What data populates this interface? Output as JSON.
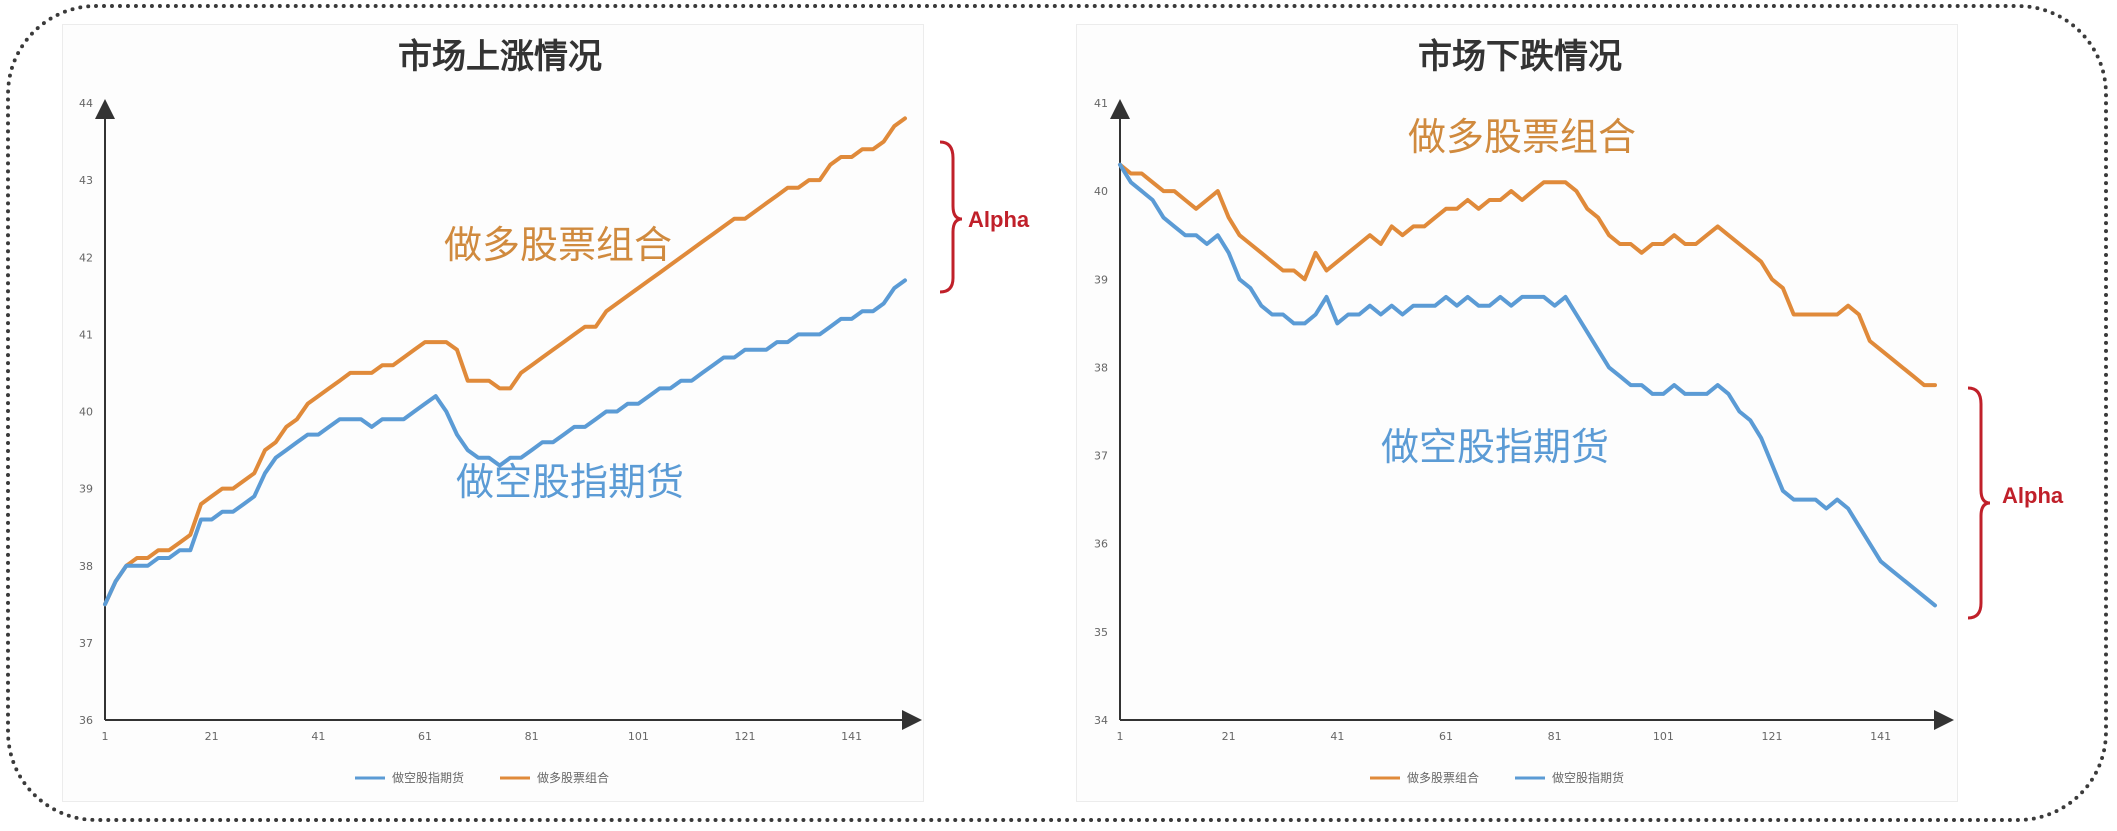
{
  "colors": {
    "long": "#e08a3a",
    "short": "#5b9bd5",
    "alpha": "#c0202a",
    "axis": "#333333"
  },
  "chart_data": [
    {
      "type": "line",
      "title": "市场上涨情况",
      "x_tick_labels": [
        "1",
        "21",
        "41",
        "61",
        "81",
        "101",
        "121",
        "141"
      ],
      "y_tick_labels": [
        "36",
        "37",
        "38",
        "39",
        "40",
        "41",
        "42",
        "43",
        "44"
      ],
      "xlim": [
        1,
        151
      ],
      "ylim": [
        36,
        44
      ],
      "legend": [
        "做空股指期货",
        "做多股票组合"
      ],
      "legend_position": "bottom",
      "annotations": {
        "long": "做多股票组合",
        "short": "做空股指期货",
        "alpha": "Alpha"
      },
      "series": [
        {
          "name": "做多股票组合",
          "color_key": "long",
          "x": [
            1,
            3,
            5,
            7,
            9,
            11,
            13,
            15,
            17,
            19,
            21,
            23,
            25,
            27,
            29,
            31,
            33,
            35,
            37,
            39,
            41,
            43,
            45,
            47,
            49,
            51,
            53,
            55,
            57,
            59,
            61,
            63,
            65,
            67,
            69,
            71,
            73,
            75,
            77,
            79,
            81,
            83,
            85,
            87,
            89,
            91,
            93,
            95,
            97,
            99,
            101,
            103,
            105,
            107,
            109,
            111,
            113,
            115,
            117,
            119,
            121,
            123,
            125,
            127,
            129,
            131,
            133,
            135,
            137,
            139,
            141,
            143,
            145,
            147,
            149,
            151
          ],
          "y": [
            37.5,
            37.8,
            38.0,
            38.1,
            38.1,
            38.2,
            38.2,
            38.3,
            38.4,
            38.8,
            38.9,
            39.0,
            39.0,
            39.1,
            39.2,
            39.5,
            39.6,
            39.8,
            39.9,
            40.1,
            40.2,
            40.3,
            40.4,
            40.5,
            40.5,
            40.5,
            40.6,
            40.6,
            40.7,
            40.8,
            40.9,
            40.9,
            40.9,
            40.8,
            40.4,
            40.4,
            40.4,
            40.3,
            40.3,
            40.5,
            40.6,
            40.7,
            40.8,
            40.9,
            41.0,
            41.1,
            41.1,
            41.3,
            41.4,
            41.5,
            41.6,
            41.7,
            41.8,
            41.9,
            42.0,
            42.1,
            42.2,
            42.3,
            42.4,
            42.5,
            42.5,
            42.6,
            42.7,
            42.8,
            42.9,
            42.9,
            43.0,
            43.0,
            43.2,
            43.3,
            43.3,
            43.4,
            43.4,
            43.5,
            43.7,
            43.8
          ]
        },
        {
          "name": "做空股指期货",
          "color_key": "short",
          "x": [
            1,
            3,
            5,
            7,
            9,
            11,
            13,
            15,
            17,
            19,
            21,
            23,
            25,
            27,
            29,
            31,
            33,
            35,
            37,
            39,
            41,
            43,
            45,
            47,
            49,
            51,
            53,
            55,
            57,
            59,
            61,
            63,
            65,
            67,
            69,
            71,
            73,
            75,
            77,
            79,
            81,
            83,
            85,
            87,
            89,
            91,
            93,
            95,
            97,
            99,
            101,
            103,
            105,
            107,
            109,
            111,
            113,
            115,
            117,
            119,
            121,
            123,
            125,
            127,
            129,
            131,
            133,
            135,
            137,
            139,
            141,
            143,
            145,
            147,
            149,
            151
          ],
          "y": [
            37.5,
            37.8,
            38.0,
            38.0,
            38.0,
            38.1,
            38.1,
            38.2,
            38.2,
            38.6,
            38.6,
            38.7,
            38.7,
            38.8,
            38.9,
            39.2,
            39.4,
            39.5,
            39.6,
            39.7,
            39.7,
            39.8,
            39.9,
            39.9,
            39.9,
            39.8,
            39.9,
            39.9,
            39.9,
            40.0,
            40.1,
            40.2,
            40.0,
            39.7,
            39.5,
            39.4,
            39.4,
            39.3,
            39.4,
            39.4,
            39.5,
            39.6,
            39.6,
            39.7,
            39.8,
            39.8,
            39.9,
            40.0,
            40.0,
            40.1,
            40.1,
            40.2,
            40.3,
            40.3,
            40.4,
            40.4,
            40.5,
            40.6,
            40.7,
            40.7,
            40.8,
            40.8,
            40.8,
            40.9,
            40.9,
            41.0,
            41.0,
            41.0,
            41.1,
            41.2,
            41.2,
            41.3,
            41.3,
            41.4,
            41.6,
            41.7
          ]
        }
      ]
    },
    {
      "type": "line",
      "title": "市场下跌情况",
      "x_tick_labels": [
        "1",
        "21",
        "41",
        "61",
        "81",
        "101",
        "121",
        "141"
      ],
      "y_tick_labels": [
        "34",
        "35",
        "36",
        "37",
        "38",
        "39",
        "40",
        "41"
      ],
      "xlim": [
        1,
        151
      ],
      "ylim": [
        34,
        41
      ],
      "legend": [
        "做多股票组合",
        "做空股指期货"
      ],
      "legend_position": "bottom",
      "annotations": {
        "long": "做多股票组合",
        "short": "做空股指期货",
        "alpha": "Alpha"
      },
      "series": [
        {
          "name": "做多股票组合",
          "color_key": "long",
          "x": [
            1,
            3,
            5,
            7,
            9,
            11,
            13,
            15,
            17,
            19,
            21,
            23,
            25,
            27,
            29,
            31,
            33,
            35,
            37,
            39,
            41,
            43,
            45,
            47,
            49,
            51,
            53,
            55,
            57,
            59,
            61,
            63,
            65,
            67,
            69,
            71,
            73,
            75,
            77,
            79,
            81,
            83,
            85,
            87,
            89,
            91,
            93,
            95,
            97,
            99,
            101,
            103,
            105,
            107,
            109,
            111,
            113,
            115,
            117,
            119,
            121,
            123,
            125,
            127,
            129,
            131,
            133,
            135,
            137,
            139,
            141,
            143,
            145,
            147,
            149,
            151
          ],
          "y": [
            40.3,
            40.2,
            40.2,
            40.1,
            40.0,
            40.0,
            39.9,
            39.8,
            39.9,
            40.0,
            39.7,
            39.5,
            39.4,
            39.3,
            39.2,
            39.1,
            39.1,
            39.0,
            39.3,
            39.1,
            39.2,
            39.3,
            39.4,
            39.5,
            39.4,
            39.6,
            39.5,
            39.6,
            39.6,
            39.7,
            39.8,
            39.8,
            39.9,
            39.8,
            39.9,
            39.9,
            40.0,
            39.9,
            40.0,
            40.1,
            40.1,
            40.1,
            40.0,
            39.8,
            39.7,
            39.5,
            39.4,
            39.4,
            39.3,
            39.4,
            39.4,
            39.5,
            39.4,
            39.4,
            39.5,
            39.6,
            39.5,
            39.4,
            39.3,
            39.2,
            39.0,
            38.9,
            38.6,
            38.6,
            38.6,
            38.6,
            38.6,
            38.7,
            38.6,
            38.3,
            38.2,
            38.1,
            38.0,
            37.9,
            37.8,
            37.8
          ]
        },
        {
          "name": "做空股指期货",
          "color_key": "short",
          "x": [
            1,
            3,
            5,
            7,
            9,
            11,
            13,
            15,
            17,
            19,
            21,
            23,
            25,
            27,
            29,
            31,
            33,
            35,
            37,
            39,
            41,
            43,
            45,
            47,
            49,
            51,
            53,
            55,
            57,
            59,
            61,
            63,
            65,
            67,
            69,
            71,
            73,
            75,
            77,
            79,
            81,
            83,
            85,
            87,
            89,
            91,
            93,
            95,
            97,
            99,
            101,
            103,
            105,
            107,
            109,
            111,
            113,
            115,
            117,
            119,
            121,
            123,
            125,
            127,
            129,
            131,
            133,
            135,
            137,
            139,
            141,
            143,
            145,
            147,
            149,
            151
          ],
          "y": [
            40.3,
            40.1,
            40.0,
            39.9,
            39.7,
            39.6,
            39.5,
            39.5,
            39.4,
            39.5,
            39.3,
            39.0,
            38.9,
            38.7,
            38.6,
            38.6,
            38.5,
            38.5,
            38.6,
            38.8,
            38.5,
            38.6,
            38.6,
            38.7,
            38.6,
            38.7,
            38.6,
            38.7,
            38.7,
            38.7,
            38.8,
            38.7,
            38.8,
            38.7,
            38.7,
            38.8,
            38.7,
            38.8,
            38.8,
            38.8,
            38.7,
            38.8,
            38.6,
            38.4,
            38.2,
            38.0,
            37.9,
            37.8,
            37.8,
            37.7,
            37.7,
            37.8,
            37.7,
            37.7,
            37.7,
            37.8,
            37.7,
            37.5,
            37.4,
            37.2,
            36.9,
            36.6,
            36.5,
            36.5,
            36.5,
            36.4,
            36.5,
            36.4,
            36.2,
            36.0,
            35.8,
            35.7,
            35.6,
            35.5,
            35.4,
            35.3
          ]
        }
      ]
    }
  ]
}
